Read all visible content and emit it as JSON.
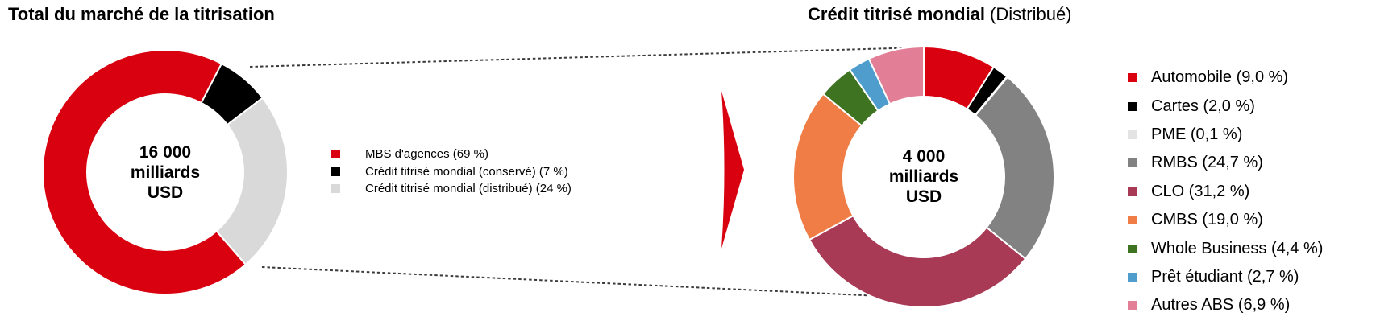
{
  "right_title": {
    "bold": "Crédit titrisé mondial",
    "normal": "(Distribué)"
  },
  "arrow": {
    "color": "#D9000F"
  },
  "connector_color": "#3a3a3a",
  "chart_data": [
    {
      "type": "pie",
      "subtype": "donut",
      "title": "Total du marché de la titrisation",
      "center_lines": [
        "16 000",
        "milliards",
        "USD"
      ],
      "center_value": "16 000 milliards USD",
      "start_angle_deg": 139,
      "legend_position": "right",
      "slices": [
        {
          "label": "MBS d'agences",
          "display": "MBS d'agences (69 %)",
          "value": 69,
          "color": "#D9000F"
        },
        {
          "label": "Crédit titrisé mondial (conservé)",
          "display": "Crédit titrisé mondial (conservé) (7 %)",
          "value": 7,
          "color": "#000000"
        },
        {
          "label": "Crédit titrisé mondial (distribué)",
          "display": "Crédit titrisé mondial (distribué) (24 %)",
          "value": 24,
          "color": "#D9D9D9"
        }
      ]
    },
    {
      "type": "pie",
      "subtype": "donut",
      "title": "Crédit titrisé mondial (Distribué)",
      "center_lines": [
        "4 000",
        "milliards",
        "USD"
      ],
      "center_value": "4 000 milliards USD",
      "start_angle_deg": 0,
      "legend_position": "right",
      "slices": [
        {
          "label": "Automobile",
          "display": "Automobile (9,0 %)",
          "value": 9.0,
          "color": "#D9000F"
        },
        {
          "label": "Cartes",
          "display": "Cartes (2,0 %)",
          "value": 2.0,
          "color": "#000000"
        },
        {
          "label": "PME",
          "display": "PME (0,1 %)",
          "value": 0.1,
          "color": "#E3E3E3"
        },
        {
          "label": "RMBS",
          "display": "RMBS (24,7 %)",
          "value": 24.7,
          "color": "#828282"
        },
        {
          "label": "CLO",
          "display": "CLO (31,2 %)",
          "value": 31.2,
          "color": "#A93A56"
        },
        {
          "label": "CMBS",
          "display": "CMBS (19,0 %)",
          "value": 19.0,
          "color": "#EF7D45"
        },
        {
          "label": "Whole Business",
          "display": "Whole Business (4,4 %)",
          "value": 4.4,
          "color": "#3D7321"
        },
        {
          "label": "Prêt étudiant",
          "display": "Prêt étudiant (2,7 %)",
          "value": 2.7,
          "color": "#4E9DCD"
        },
        {
          "label": "Autres ABS",
          "display": "Autres ABS (6,9 %)",
          "value": 6.9,
          "color": "#E27E95"
        }
      ]
    }
  ]
}
